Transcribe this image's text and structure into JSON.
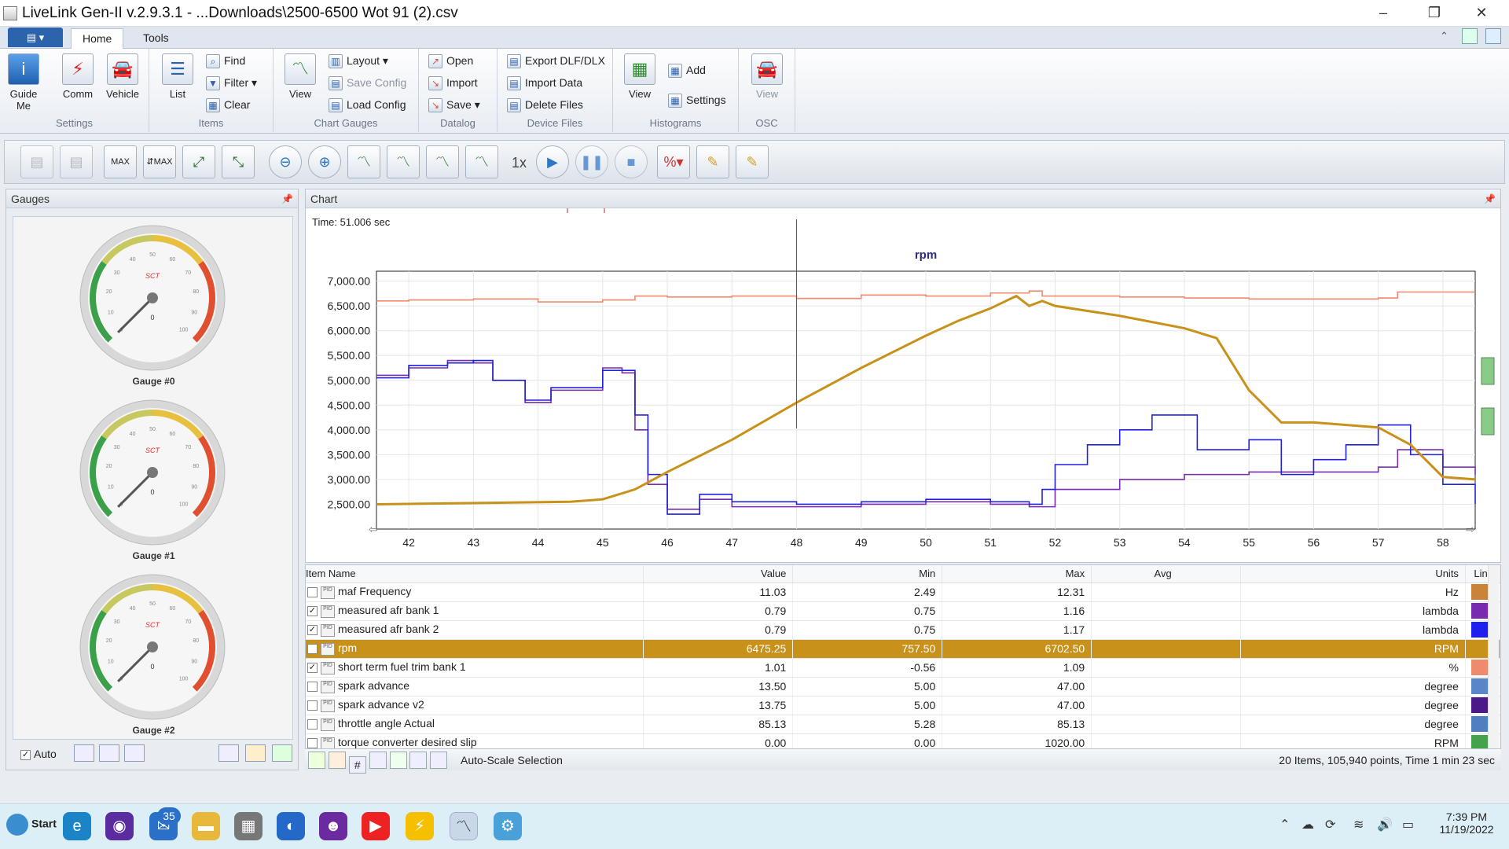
{
  "window": {
    "title": "LiveLink Gen-II  v.2.9.3.1 - ...Downloads\\2500-6500 Wot 91 (2).csv",
    "controls": [
      "–",
      "❐",
      "✕"
    ]
  },
  "ribbon": {
    "tabs": [
      {
        "label": "Home",
        "active": true
      },
      {
        "label": "Tools",
        "active": false
      }
    ],
    "groups": {
      "settings": {
        "label": "Settings",
        "guide": "Guide\nMe",
        "comm": "Comm",
        "vehicle": "Vehicle"
      },
      "items": {
        "label": "Items",
        "list": "List",
        "find": "Find",
        "filter": "Filter",
        "clear": "Clear"
      },
      "chart_gauges": {
        "label": "Chart  Gauges",
        "view": "View",
        "layout": "Layout",
        "save_config": "Save Config",
        "load_config": "Load Config"
      },
      "datalog": {
        "label": "Datalog",
        "open": "Open",
        "import": "Import",
        "save": "Save"
      },
      "device_files": {
        "label": "Device Files",
        "export": "Export DLF/DLX",
        "import_data": "Import Data",
        "delete": "Delete Files"
      },
      "histograms": {
        "label": "Histograms",
        "view": "View",
        "add": "Add",
        "settings": "Settings"
      },
      "osc": {
        "label": "OSC",
        "view": "View"
      }
    }
  },
  "toolbar": {
    "speed": "1x"
  },
  "gauges_panel": {
    "title": "Gauges",
    "gauges": [
      {
        "label": "Gauge #0"
      },
      {
        "label": "Gauge #1"
      },
      {
        "label": "Gauge #2"
      }
    ],
    "dial": {
      "brand": "SCT",
      "ticks": [
        "0",
        "10",
        "20",
        "30",
        "40",
        "50",
        "60",
        "70",
        "80",
        "90",
        "100"
      ],
      "needle_value": "0"
    },
    "auto_label": "Auto"
  },
  "chart_panel": {
    "title": "Chart",
    "time_label": "Time: 51.006 sec"
  },
  "chart_data": {
    "type": "line",
    "title": "rpm",
    "xlim": [
      41.5,
      58.5
    ],
    "ylim": [
      2000,
      7200
    ],
    "x_ticks": [
      "42",
      "43",
      "44",
      "45",
      "46",
      "47",
      "48",
      "49",
      "50",
      "51",
      "52",
      "53",
      "54",
      "55",
      "56",
      "57",
      "58"
    ],
    "y_ticks": [
      "2,500.00",
      "3,000.00",
      "3,500.00",
      "4,000.00",
      "4,500.00",
      "5,000.00",
      "5,500.00",
      "6,000.00",
      "6,500.00",
      "7,000.00"
    ],
    "cursor_x": 48,
    "grid": true,
    "series": [
      {
        "name": "rpm",
        "color": "#c8921a",
        "x": [
          41.5,
          44.5,
          45,
          45.5,
          46,
          47,
          48,
          49,
          50,
          50.5,
          51,
          51.4,
          51.6,
          51.8,
          52,
          53,
          54,
          54.5,
          55,
          55.5,
          56,
          57,
          57.5,
          58,
          58.5
        ],
        "y": [
          2500,
          2550,
          2600,
          2800,
          3150,
          3800,
          4550,
          5250,
          5900,
          6200,
          6450,
          6700,
          6500,
          6600,
          6500,
          6300,
          6050,
          5850,
          4800,
          4150,
          4150,
          4050,
          3700,
          3050,
          3000
        ]
      },
      {
        "name": "short term fuel trim bank 1",
        "color": "#f08a6c",
        "x": [
          41.5,
          42,
          43,
          44,
          45,
          45.5,
          46,
          47,
          48,
          49,
          50,
          51,
          51.6,
          51.8,
          52,
          53,
          54,
          55,
          56,
          57,
          57.3,
          58.5
        ],
        "y": [
          6600,
          6620,
          6640,
          6580,
          6620,
          6700,
          6680,
          6700,
          6650,
          6720,
          6700,
          6760,
          6800,
          6700,
          6700,
          6680,
          6660,
          6640,
          6640,
          6660,
          6780,
          6780
        ]
      },
      {
        "name": "measured afr bank 2",
        "color": "#2222dd",
        "x": [
          41.5,
          42,
          42.6,
          43,
          43.3,
          43.8,
          44.2,
          45,
          45.3,
          45.5,
          45.7,
          46,
          46.5,
          47,
          48,
          49,
          50,
          51,
          51.6,
          51.8,
          52,
          52.5,
          53,
          53.5,
          54,
          54.2,
          55,
          55.5,
          56,
          56.5,
          57,
          57.5,
          58,
          58.5
        ],
        "y": [
          5050,
          5300,
          5350,
          5400,
          5000,
          4600,
          4850,
          5200,
          5200,
          4300,
          3100,
          2300,
          2700,
          2550,
          2500,
          2550,
          2600,
          2550,
          2500,
          2800,
          3300,
          3700,
          4000,
          4300,
          4300,
          3600,
          3800,
          3100,
          3400,
          3700,
          4100,
          3500,
          2900,
          2500
        ]
      },
      {
        "name": "measured afr bank 1",
        "color": "#7a2ab0",
        "x": [
          41.5,
          42,
          42.6,
          43,
          43.3,
          43.8,
          44.2,
          45,
          45.3,
          45.5,
          45.7,
          46,
          46.5,
          47,
          48,
          49,
          50,
          51,
          51.6,
          52,
          53,
          54,
          55,
          56,
          57,
          57.3,
          58,
          58.5
        ],
        "y": [
          5100,
          5250,
          5400,
          5350,
          5000,
          4550,
          4800,
          5250,
          5150,
          4000,
          2900,
          2400,
          2600,
          2450,
          2450,
          2500,
          2550,
          2500,
          2450,
          2800,
          3000,
          3100,
          3150,
          3150,
          3250,
          3600,
          3250,
          3100
        ]
      }
    ]
  },
  "grid": {
    "columns": [
      "Item Name",
      "Value",
      "Min",
      "Max",
      "Avg",
      "Units",
      "Line"
    ],
    "rows": [
      {
        "checked": false,
        "name": "maf Frequency",
        "value": "11.03",
        "min": "2.49",
        "max": "12.31",
        "avg": "",
        "units": "Hz",
        "color": "#c8853a",
        "selected": false
      },
      {
        "checked": true,
        "name": "measured afr bank 1",
        "value": "0.79",
        "min": "0.75",
        "max": "1.16",
        "avg": "",
        "units": "lambda",
        "color": "#7a2ab0",
        "selected": false
      },
      {
        "checked": true,
        "name": "measured afr bank 2",
        "value": "0.79",
        "min": "0.75",
        "max": "1.17",
        "avg": "",
        "units": "lambda",
        "color": "#1f1ff0",
        "selected": false
      },
      {
        "checked": true,
        "name": "rpm",
        "value": "6475.25",
        "min": "757.50",
        "max": "6702.50",
        "avg": "",
        "units": "RPM",
        "color": "#c8921a",
        "selected": true
      },
      {
        "checked": true,
        "name": "short term fuel trim bank 1",
        "value": "1.01",
        "min": "-0.56",
        "max": "1.09",
        "avg": "",
        "units": "%",
        "color": "#f08a6c",
        "selected": false
      },
      {
        "checked": false,
        "name": "spark advance",
        "value": "13.50",
        "min": "5.00",
        "max": "47.00",
        "avg": "",
        "units": "degree",
        "color": "#5a86c9",
        "selected": false
      },
      {
        "checked": false,
        "name": "spark advance v2",
        "value": "13.75",
        "min": "5.00",
        "max": "47.00",
        "avg": "",
        "units": "degree",
        "color": "#4a1a8a",
        "selected": false
      },
      {
        "checked": false,
        "name": "throttle angle Actual",
        "value": "85.13",
        "min": "5.28",
        "max": "85.13",
        "avg": "",
        "units": "degree",
        "color": "#4f7fc0",
        "selected": false
      },
      {
        "checked": false,
        "name": "torque converter desired slip",
        "value": "0.00",
        "min": "0.00",
        "max": "1020.00",
        "avg": "",
        "units": "RPM",
        "color": "#44a34a",
        "selected": false
      }
    ]
  },
  "statusbar": {
    "autoscale": "Auto-Scale Selection",
    "summary": "20 Items, 105,940 points, Time 1 min 23 sec"
  },
  "taskbar": {
    "start": "Start",
    "mail_badge": "35",
    "time": "7:39 PM",
    "date": "11/19/2022"
  }
}
